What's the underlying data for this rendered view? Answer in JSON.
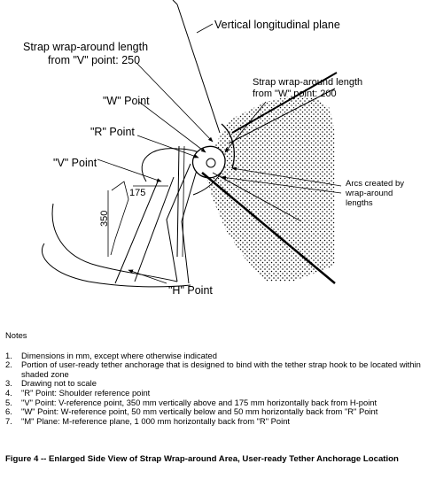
{
  "diagram": {
    "vertical_plane_label": "Vertical longitudinal plane",
    "strap_v_label_line1": "Strap wrap-around length",
    "strap_v_label_line2": "from \"V\" point: 250",
    "strap_w_label_line1": "Strap wrap-around length",
    "strap_w_label_line2": "from \"W\" point: 200",
    "w_point_label": "\"W\" Point",
    "r_point_label": "\"R\" Point",
    "v_point_label": "\"V\" Point",
    "h_point_label": "\"H\" Point",
    "dim_175": "175",
    "dim_350": "350",
    "arcs_label_line1": "Arcs created by",
    "arcs_label_line2": "wrap-around",
    "arcs_label_line3": "lengths"
  },
  "notes": {
    "title": "Notes",
    "items": [
      {
        "num": "1.",
        "text": "Dimensions in mm, except where otherwise indicated"
      },
      {
        "num": "2.",
        "text": "Portion of user-ready tether anchorage that is designed to bind with the tether strap hook to be located within shaded zone"
      },
      {
        "num": "3.",
        "text": "Drawing not to scale"
      },
      {
        "num": "4.",
        "text": "\"R\" Point:  Shoulder reference point"
      },
      {
        "num": "5.",
        "text": "\"V\" Point:  V-reference point, 350 mm vertically above and 175 mm horizontally back from H-point"
      },
      {
        "num": "6.",
        "text": "\"W\" Point:  W-reference point, 50 mm vertically below and 50 mm horizontally back from \"R\" Point"
      },
      {
        "num": "7.",
        "text": "\"M\" Plane:  M-reference plane, 1 000 mm horizontally back from \"R\" Point"
      }
    ]
  },
  "caption": "Figure 4 -- Enlarged Side View of Strap Wrap-around Area, User-ready Tether Anchorage Location"
}
